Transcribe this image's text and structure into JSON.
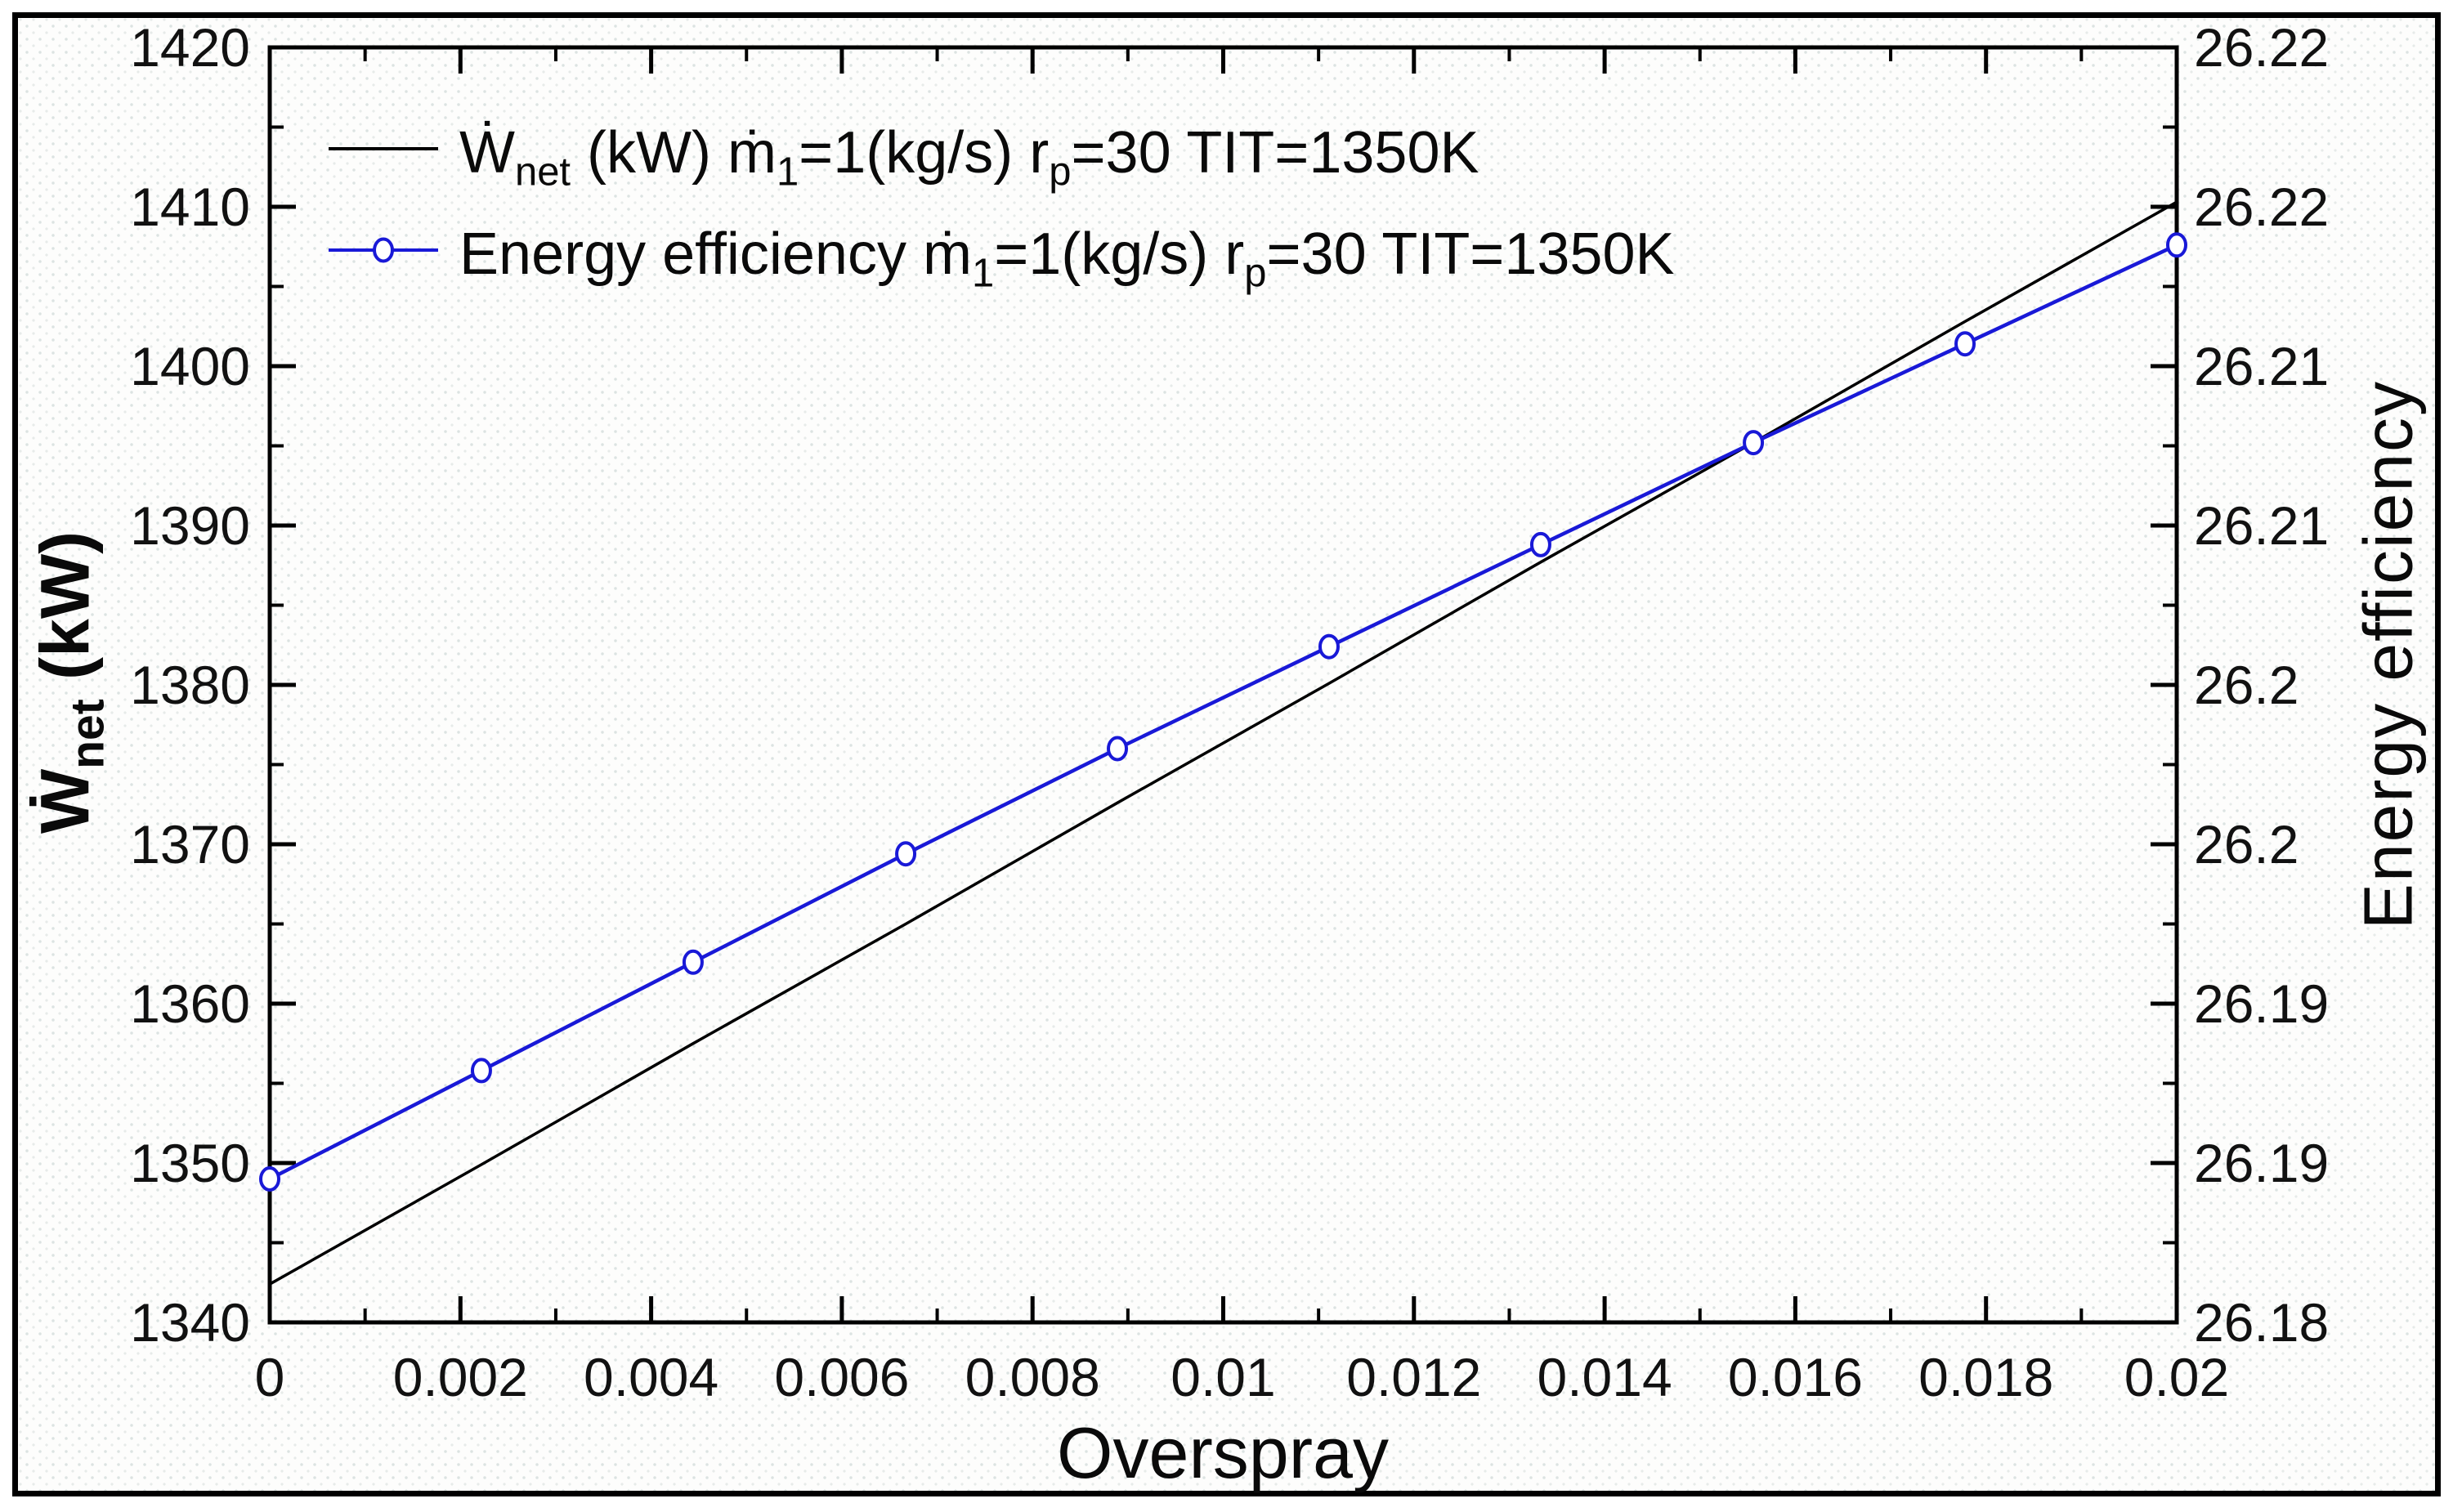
{
  "figure": {
    "background_color": "#fdfdfc",
    "border_color": "#000000",
    "frame_color": "#000000"
  },
  "chart_data": {
    "type": "line",
    "title": "",
    "x_axis": {
      "label": "Overspray",
      "min": 0,
      "max": 0.02,
      "major_step": 0.002,
      "minor_step": 0.001,
      "tick_labels": [
        "0",
        "0.002",
        "0.004",
        "0.006",
        "0.008",
        "0.01",
        "0.012",
        "0.014",
        "0.016",
        "0.018",
        "0.02"
      ],
      "grid": false
    },
    "y_axis_left": {
      "label_plain": "Wnet (kW)",
      "label_segments": [
        {
          "t": "Ẇ"
        },
        {
          "t": "net",
          "sub": true
        },
        {
          "t": " (kW)"
        }
      ],
      "min": 1340,
      "max": 1420,
      "major_step": 10,
      "minor_step": 5,
      "tick_labels_top_to_bottom": [
        "1420",
        "1410",
        "1400",
        "1390",
        "1380",
        "1370",
        "1360",
        "1350",
        "1340"
      ]
    },
    "y_axis_right": {
      "label": "Energy efficiency",
      "min": 26.18,
      "max": 26.22,
      "major_step": 0.005,
      "minor_step": 0.0025,
      "tick_labels_top_to_bottom": [
        "26.22",
        "26.22",
        "26.21",
        "26.21",
        "26.2",
        "26.2",
        "26.19",
        "26.19",
        "26.18"
      ]
    },
    "legend_position": "top-left-inside",
    "series": [
      {
        "id": "wnet",
        "axis": "left",
        "color": "#000000",
        "line_width": 3.5,
        "marker": null,
        "label_plain": "Wnet (kW) m1=1(kg/s) rp=30 TIT=1350K",
        "label_segments": [
          {
            "t": "Ẇ"
          },
          {
            "t": "net",
            "sub": true
          },
          {
            "t": " (kW) "
          },
          {
            "t": "ṁ"
          },
          {
            "t": "1",
            "sub": true
          },
          {
            "t": "=1(kg/s) r"
          },
          {
            "t": "p",
            "sub": true
          },
          {
            "t": "=30 TIT=1350K"
          }
        ],
        "x": [
          0,
          0.00222,
          0.00444,
          0.00667,
          0.00889,
          0.01111,
          0.01333,
          0.01556,
          0.01778,
          0.02
        ],
        "y": [
          1342.4,
          1349.9,
          1357.5,
          1365.0,
          1372.6,
          1380.1,
          1387.7,
          1395.2,
          1402.8,
          1410.3
        ]
      },
      {
        "id": "efficiency",
        "axis": "right",
        "color": "#1919d7",
        "line_width": 4.5,
        "marker": "open-circle",
        "marker_fill": "#ffffff",
        "label_plain": "Energy efficiency m1=1(kg/s) rp=30 TIT=1350K",
        "label_segments": [
          {
            "t": "Energy efficiency "
          },
          {
            "t": "ṁ"
          },
          {
            "t": "1",
            "sub": true
          },
          {
            "t": "=1(kg/s) r"
          },
          {
            "t": "p",
            "sub": true
          },
          {
            "t": "=30 TIT=1350K"
          }
        ],
        "x": [
          0,
          0.00222,
          0.00444,
          0.00667,
          0.00889,
          0.01111,
          0.01333,
          0.01556,
          0.01778,
          0.02
        ],
        "y": [
          26.1845,
          26.1879,
          26.1913,
          26.1947,
          26.198,
          26.2012,
          26.2044,
          26.2076,
          26.2107,
          26.2138
        ]
      }
    ]
  }
}
